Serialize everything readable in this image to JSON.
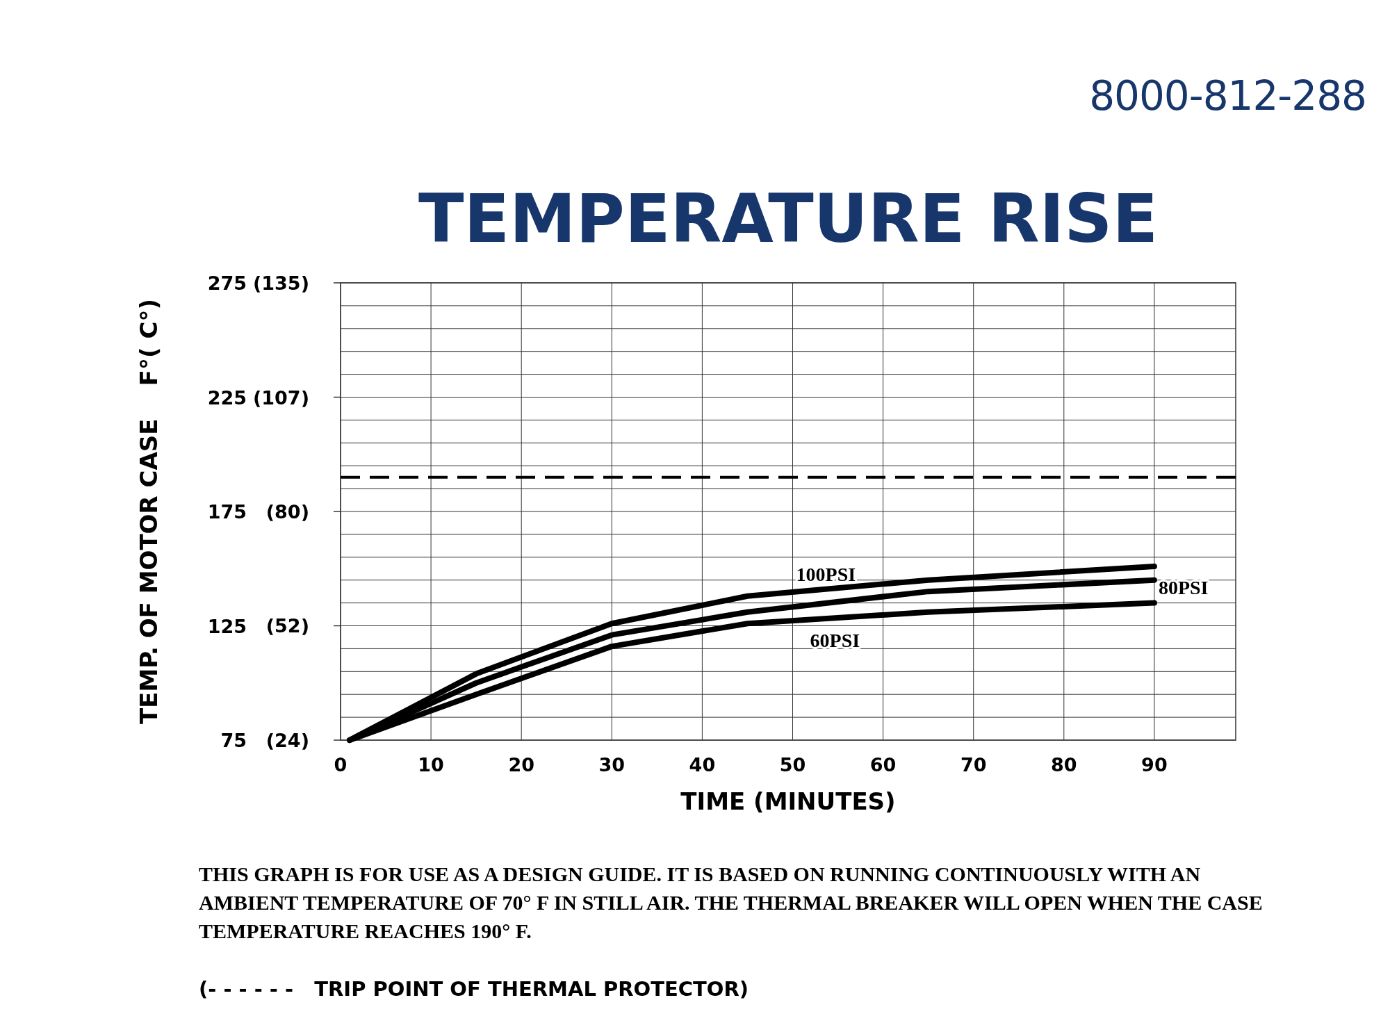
{
  "chart_data": {
    "type": "line",
    "title": "TEMPERATURE RISE",
    "xlabel": "TIME (MINUTES)",
    "ylabel": "TEMP. OF MOTOR CASE    F°( C°)",
    "xlim": [
      0,
      99
    ],
    "xticks": [
      0,
      10,
      20,
      30,
      40,
      50,
      60,
      70,
      80,
      90
    ],
    "ylim": [
      75,
      275
    ],
    "y2lim": [
      23.9,
      135
    ],
    "y2ticks": [
      {
        "value": 23.9,
        "label": "(24)"
      },
      {
        "value": 51.7,
        "label": "(52)"
      },
      {
        "value": 79.5,
        "label": "(80)"
      },
      {
        "value": 107.2,
        "label": "(107)"
      },
      {
        "value": 135,
        "label": "(135)"
      }
    ],
    "yticks": [
      75,
      {
        "value": 85,
        "label": null
      },
      {
        "value": 95,
        "label": null
      },
      {
        "value": 105,
        "label": null
      },
      {
        "value": 115,
        "label": null
      },
      125,
      {
        "value": 135,
        "label": null
      },
      {
        "value": 145,
        "label": null
      },
      {
        "value": 155,
        "label": null
      },
      {
        "value": 165,
        "label": null
      },
      175,
      {
        "value": 185,
        "label": null
      },
      {
        "value": 195,
        "label": null
      },
      {
        "value": 205,
        "label": null
      },
      {
        "value": 215,
        "label": null
      },
      225,
      {
        "value": 235,
        "label": null
      },
      {
        "value": 245,
        "label": null
      },
      {
        "value": 255,
        "label": null
      },
      {
        "value": 265,
        "label": null
      },
      275
    ],
    "grid": true,
    "line_style": "solid",
    "marker": "none",
    "series": [
      {
        "name": "100PSI",
        "color": "#000000",
        "x": [
          1,
          15,
          30,
          45,
          65,
          90
        ],
        "values": [
          75,
          104,
          126,
          138,
          145,
          151
        ]
      },
      {
        "name": "80PSI",
        "color": "#000000",
        "x": [
          1,
          15,
          30,
          45,
          65,
          90
        ],
        "values": [
          75,
          100,
          121,
          131,
          140,
          145
        ]
      },
      {
        "name": "60PSI",
        "color": "#000000",
        "x": [
          1,
          15,
          30,
          45,
          65,
          90
        ],
        "values": [
          75,
          95,
          116,
          126,
          131,
          135
        ]
      }
    ],
    "ref_lines": [
      {
        "axis": "y",
        "value": 190,
        "color": "#000000",
        "line_style": "dashed"
      }
    ],
    "annotations": [
      "8000-812-288",
      "THIS GRAPH IS FOR USE AS A DESIGN GUIDE.  IT IS BASED ON RUNNING CONTINUOUSLY WITH AN AMBIENT TEMPERATURE OF 70° F IN STILL AIR. THE THERMAL BREAKER WILL OPEN WHEN THE CASE TEMPERATURE REACHES 190° F.",
      "(- - - - - -   TRIP POINT OF THERMAL PROTECTOR)"
    ]
  }
}
